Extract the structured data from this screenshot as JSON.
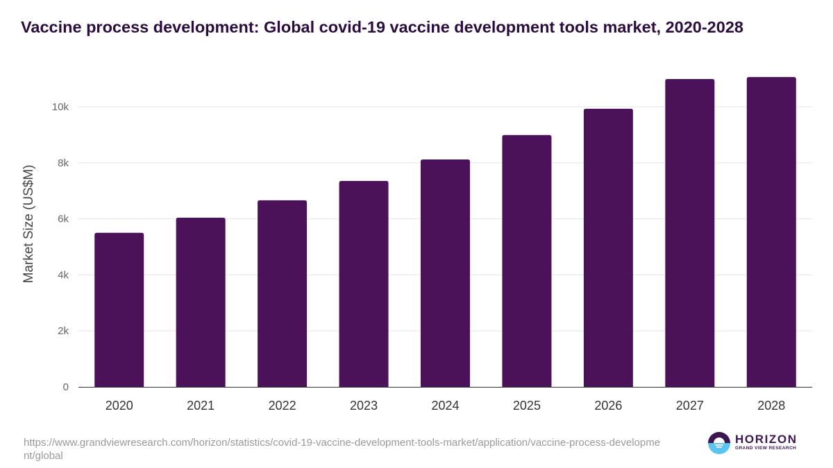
{
  "title": "Vaccine process development: Global covid-19 vaccine development tools market, 2020-2028",
  "source_url": "https://www.grandviewresearch.com/horizon/statistics/covid-19-vaccine-development-tools-market/application/vaccine-process-development/global",
  "logo": {
    "name": "HORIZON",
    "subtitle": "GRAND VIEW RESEARCH"
  },
  "colors": {
    "bar": "#4b1159",
    "title": "#2a0d3e",
    "grid": "#e6e6e6",
    "axis": "#333333"
  },
  "chart_data": {
    "type": "bar",
    "title": "Vaccine process development: Global covid-19 vaccine development tools market, 2020-2028",
    "xlabel": "",
    "ylabel": "Market Size (US$M)",
    "categories": [
      "2020",
      "2021",
      "2022",
      "2023",
      "2024",
      "2025",
      "2026",
      "2027",
      "2028"
    ],
    "values": [
      5500,
      6040,
      6660,
      7350,
      8120,
      8990,
      9930,
      10990,
      11060
    ],
    "ylim": [
      0,
      12000
    ],
    "yticks": [
      0,
      2000,
      4000,
      6000,
      8000,
      10000
    ],
    "ytick_labels": [
      "0",
      "2k",
      "4k",
      "6k",
      "8k",
      "10k"
    ],
    "grid": true,
    "legend": "none"
  }
}
